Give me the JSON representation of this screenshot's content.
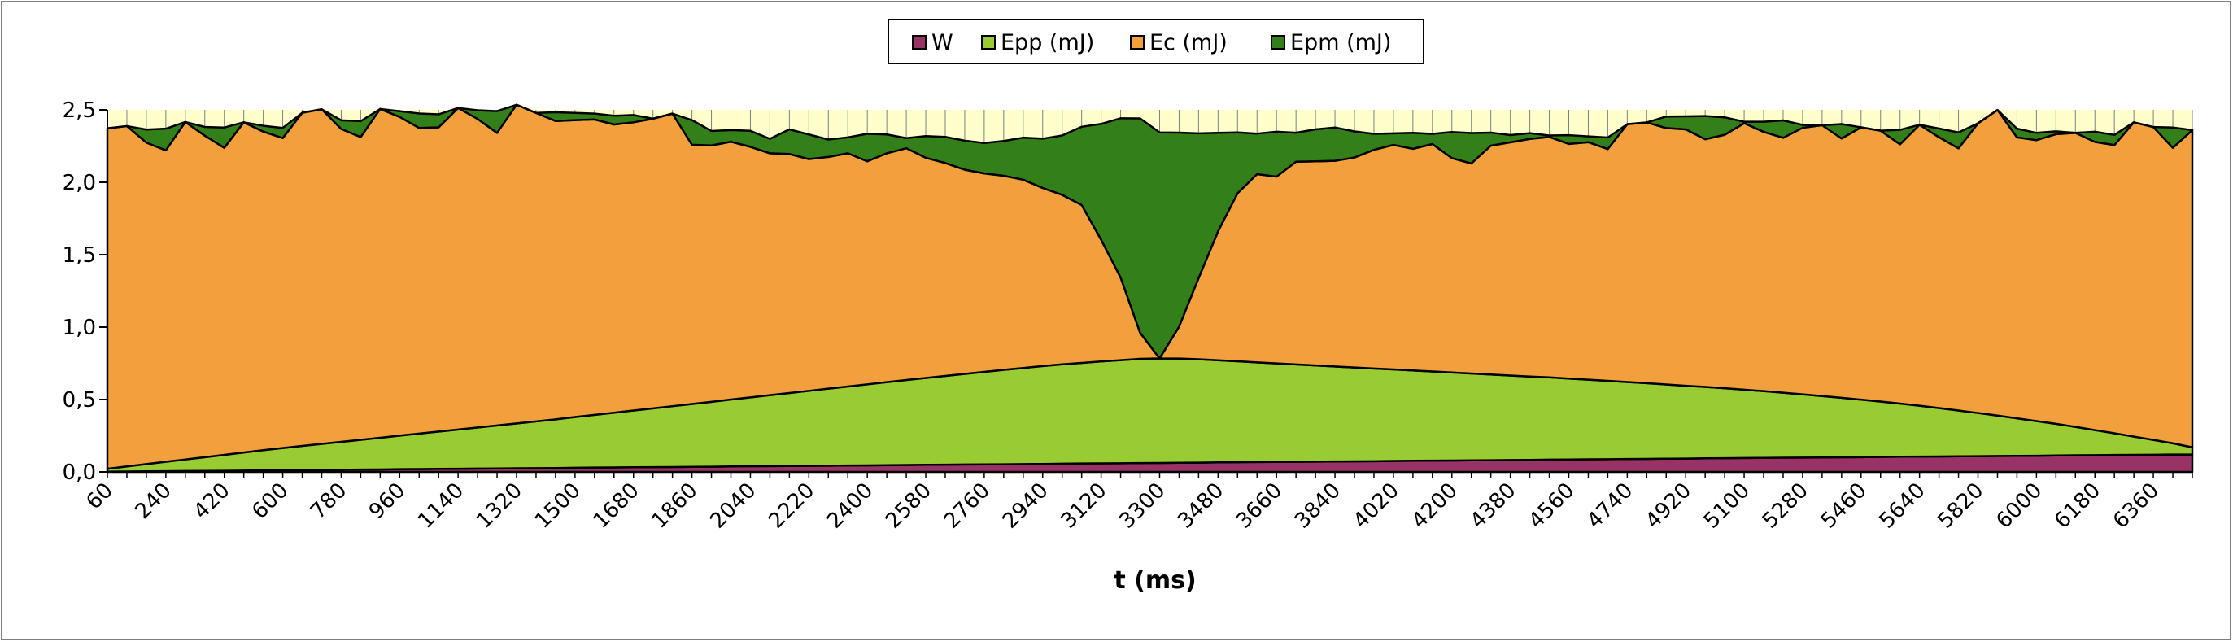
{
  "chart_data": {
    "type": "area",
    "stacked": true,
    "title": "",
    "xlabel": "t (ms)",
    "ylabel": "",
    "ylim": [
      0,
      2.5
    ],
    "yticks": [
      "0,0",
      "0,5",
      "1,0",
      "1,5",
      "2,0",
      "2,5"
    ],
    "grid": false,
    "legend_position": "top",
    "x": [
      60,
      120,
      180,
      240,
      300,
      360,
      420,
      480,
      540,
      600,
      660,
      720,
      780,
      840,
      900,
      960,
      1020,
      1080,
      1140,
      1200,
      1260,
      1320,
      1380,
      1440,
      1500,
      1560,
      1620,
      1680,
      1740,
      1800,
      1860,
      1920,
      1980,
      2040,
      2100,
      2160,
      2220,
      2280,
      2340,
      2400,
      2460,
      2520,
      2580,
      2640,
      2700,
      2760,
      2820,
      2880,
      2940,
      3000,
      3060,
      3120,
      3180,
      3240,
      3300,
      3360,
      3420,
      3480,
      3540,
      3600,
      3660,
      3720,
      3780,
      3840,
      3900,
      3960,
      4020,
      4080,
      4140,
      4200,
      4260,
      4320,
      4380,
      4440,
      4500,
      4560,
      4620,
      4680,
      4740,
      4800,
      4860,
      4920,
      4980,
      5040,
      5100,
      5160,
      5220,
      5280,
      5340,
      5400,
      5460,
      5520,
      5580,
      5640,
      5700,
      5760,
      5820,
      5880,
      5940,
      6000,
      6060,
      6120,
      6180,
      6240,
      6300,
      6360,
      6420,
      6480
    ],
    "xtick_labels": [
      "60",
      "240",
      "420",
      "600",
      "780",
      "960",
      "1140",
      "1320",
      "1500",
      "1680",
      "1860",
      "2040",
      "2220",
      "2400",
      "2580",
      "2760",
      "2940",
      "3120",
      "3300",
      "3480",
      "3660",
      "3840",
      "4020",
      "4200",
      "4380",
      "4560",
      "4740",
      "4920",
      "5100",
      "5280",
      "5460",
      "5640",
      "5820",
      "6000",
      "6180",
      "6360"
    ],
    "series": [
      {
        "name": "W",
        "color": "#993366",
        "values": [
          0.002,
          0.003,
          0.004,
          0.005,
          0.006,
          0.007,
          0.008,
          0.009,
          0.011,
          0.012,
          0.013,
          0.014,
          0.015,
          0.016,
          0.017,
          0.019,
          0.02,
          0.021,
          0.022,
          0.023,
          0.024,
          0.025,
          0.026,
          0.027,
          0.029,
          0.03,
          0.031,
          0.032,
          0.033,
          0.034,
          0.035,
          0.036,
          0.038,
          0.039,
          0.04,
          0.041,
          0.042,
          0.043,
          0.044,
          0.045,
          0.046,
          0.048,
          0.049,
          0.05,
          0.051,
          0.052,
          0.053,
          0.054,
          0.055,
          0.057,
          0.058,
          0.059,
          0.06,
          0.061,
          0.062,
          0.063,
          0.064,
          0.066,
          0.067,
          0.068,
          0.069,
          0.07,
          0.071,
          0.072,
          0.073,
          0.074,
          0.076,
          0.077,
          0.078,
          0.079,
          0.08,
          0.081,
          0.082,
          0.083,
          0.085,
          0.086,
          0.087,
          0.088,
          0.089,
          0.09,
          0.091,
          0.092,
          0.094,
          0.095,
          0.096,
          0.097,
          0.098,
          0.099,
          0.1,
          0.101,
          0.102,
          0.104,
          0.105,
          0.106,
          0.107,
          0.108,
          0.109,
          0.11,
          0.111,
          0.112,
          0.114,
          0.115,
          0.116,
          0.117,
          0.118,
          0.119,
          0.12,
          0.12
        ]
      },
      {
        "name": "Epp (mJ)",
        "color": "#99CC33",
        "values": [
          0.02,
          0.035,
          0.05,
          0.065,
          0.08,
          0.095,
          0.11,
          0.125,
          0.139,
          0.153,
          0.167,
          0.18,
          0.193,
          0.206,
          0.219,
          0.232,
          0.245,
          0.258,
          0.271,
          0.284,
          0.297,
          0.31,
          0.323,
          0.336,
          0.35,
          0.364,
          0.378,
          0.392,
          0.406,
          0.42,
          0.434,
          0.448,
          0.462,
          0.476,
          0.49,
          0.504,
          0.518,
          0.532,
          0.546,
          0.56,
          0.574,
          0.587,
          0.6,
          0.613,
          0.626,
          0.639,
          0.652,
          0.664,
          0.676,
          0.686,
          0.695,
          0.704,
          0.712,
          0.72,
          0.722,
          0.72,
          0.714,
          0.705,
          0.697,
          0.688,
          0.68,
          0.672,
          0.664,
          0.656,
          0.648,
          0.64,
          0.632,
          0.624,
          0.616,
          0.608,
          0.6,
          0.592,
          0.584,
          0.576,
          0.568,
          0.559,
          0.55,
          0.541,
          0.532,
          0.523,
          0.513,
          0.503,
          0.493,
          0.483,
          0.472,
          0.461,
          0.449,
          0.437,
          0.424,
          0.411,
          0.397,
          0.382,
          0.367,
          0.351,
          0.334,
          0.316,
          0.298,
          0.279,
          0.259,
          0.239,
          0.218,
          0.196,
          0.173,
          0.15,
          0.126,
          0.102,
          0.078,
          0.05
        ]
      },
      {
        "name": "Ec (mJ)",
        "color": "#F29F3D",
        "values": [
          2.35,
          2.35,
          2.22,
          2.15,
          2.33,
          2.22,
          2.12,
          2.28,
          2.2,
          2.14,
          2.3,
          2.31,
          2.16,
          2.09,
          2.27,
          2.2,
          2.11,
          2.1,
          2.22,
          2.13,
          2.02,
          2.2,
          2.13,
          2.06,
          2.05,
          2.04,
          1.99,
          1.99,
          2.0,
          2.02,
          1.79,
          1.77,
          1.78,
          1.73,
          1.67,
          1.65,
          1.6,
          1.6,
          1.61,
          1.54,
          1.58,
          1.6,
          1.52,
          1.47,
          1.41,
          1.37,
          1.34,
          1.3,
          1.23,
          1.17,
          1.09,
          0.84,
          0.57,
          0.18,
          0.0,
          0.22,
          0.56,
          0.89,
          1.16,
          1.3,
          1.29,
          1.4,
          1.41,
          1.42,
          1.45,
          1.51,
          1.55,
          1.53,
          1.57,
          1.48,
          1.45,
          1.58,
          1.61,
          1.64,
          1.66,
          1.62,
          1.64,
          1.6,
          1.78,
          1.8,
          1.77,
          1.77,
          1.71,
          1.75,
          1.84,
          1.79,
          1.76,
          1.84,
          1.87,
          1.79,
          1.88,
          1.87,
          1.79,
          1.94,
          1.87,
          1.81,
          2.0,
          2.11,
          1.94,
          1.94,
          2.0,
          2.03,
          1.99,
          1.99,
          2.17,
          2.16,
          2.04,
          2.19
        ]
      },
      {
        "name": "Epm (mJ)",
        "color": "#33801A",
        "values": [
          0.0,
          0.0,
          0.09,
          0.15,
          0.0,
          0.06,
          0.14,
          0.0,
          0.04,
          0.07,
          0.0,
          0.0,
          0.06,
          0.11,
          0.0,
          0.04,
          0.1,
          0.09,
          0.0,
          0.06,
          0.15,
          0.0,
          0.0,
          0.06,
          0.05,
          0.04,
          0.06,
          0.05,
          0.0,
          0.0,
          0.17,
          0.1,
          0.08,
          0.11,
          0.1,
          0.17,
          0.17,
          0.12,
          0.11,
          0.19,
          0.13,
          0.07,
          0.15,
          0.18,
          0.2,
          0.21,
          0.24,
          0.29,
          0.34,
          0.41,
          0.54,
          0.8,
          1.1,
          1.48,
          1.56,
          1.34,
          1.0,
          0.68,
          0.42,
          0.28,
          0.31,
          0.2,
          0.22,
          0.23,
          0.18,
          0.11,
          0.08,
          0.11,
          0.07,
          0.18,
          0.21,
          0.09,
          0.05,
          0.04,
          0.01,
          0.06,
          0.04,
          0.08,
          0.0,
          0.0,
          0.08,
          0.09,
          0.16,
          0.12,
          0.01,
          0.07,
          0.12,
          0.02,
          0.0,
          0.1,
          0.0,
          0.0,
          0.1,
          0.0,
          0.06,
          0.11,
          0.0,
          0.0,
          0.06,
          0.05,
          0.02,
          0.0,
          0.07,
          0.07,
          0.0,
          0.0,
          0.14,
          0.0
        ]
      }
    ]
  }
}
